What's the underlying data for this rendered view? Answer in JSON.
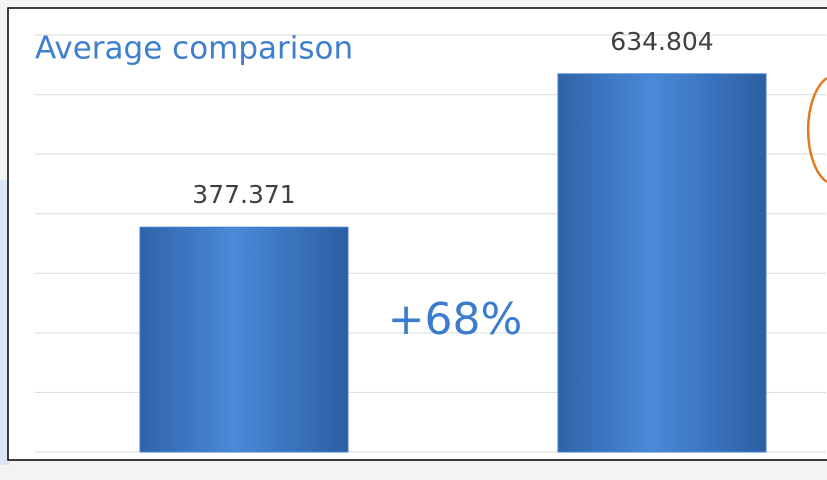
{
  "chart_data": {
    "type": "bar",
    "title": "Average comparison",
    "categories": [
      null,
      null
    ],
    "values": [
      377.371,
      634.804
    ],
    "color": "#3f7fcf",
    "annotations": [
      "+68%"
    ],
    "ylim": [
      0,
      700
    ],
    "yticks": [
      0,
      100,
      200,
      300,
      400,
      500,
      600,
      700
    ],
    "grid": true
  }
}
